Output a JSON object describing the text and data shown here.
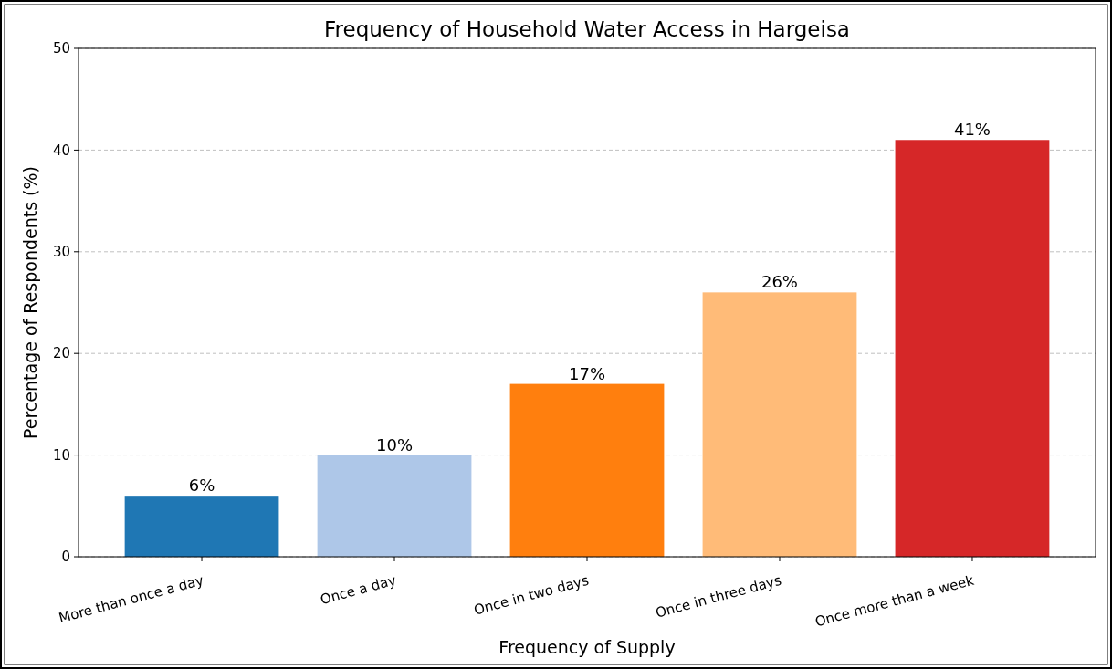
{
  "chart_data": {
    "type": "bar",
    "title": "Frequency of Household Water Access in Hargeisa",
    "xlabel": "Frequency of Supply",
    "ylabel": "Percentage of Respondents (%)",
    "categories": [
      "More than once a day",
      "Once a day",
      "Once in two days",
      "Once in three days",
      "Once more than a week"
    ],
    "values": [
      6,
      10,
      17,
      26,
      41
    ],
    "colors": [
      "#1f77b4",
      "#aec7e8",
      "#ff7f0e",
      "#ffbb78",
      "#d62728"
    ],
    "value_labels": [
      "6%",
      "10%",
      "17%",
      "26%",
      "41%"
    ],
    "ylim": [
      0,
      50
    ],
    "yticks": [
      0,
      10,
      20,
      30,
      40,
      50
    ],
    "grid": "y"
  }
}
